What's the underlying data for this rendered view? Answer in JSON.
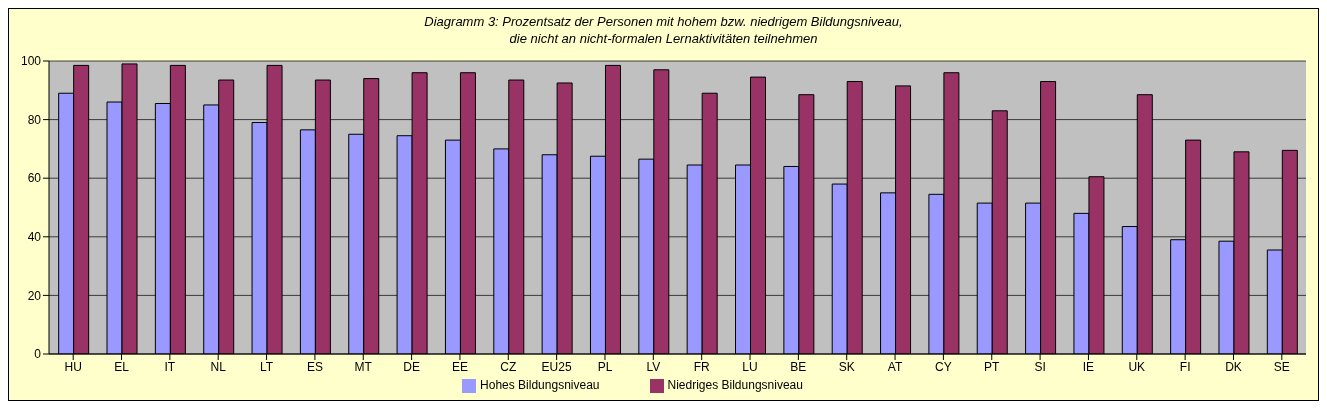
{
  "chart_data": {
    "type": "bar",
    "title": "Diagramm 3: Prozentsatz der Personen mit hohem bzw. niedrigem Bildungsniveau,\ndie nicht an nicht-formalen Lernaktivitäten teilnehmen",
    "categories": [
      "HU",
      "EL",
      "IT",
      "NL",
      "LT",
      "ES",
      "MT",
      "DE",
      "EE",
      "CZ",
      "EU25",
      "PL",
      "LV",
      "FR",
      "LU",
      "BE",
      "SK",
      "AT",
      "CY",
      "PT",
      "SI",
      "IE",
      "UK",
      "FI",
      "DK",
      "SE"
    ],
    "series": [
      {
        "name": "Hohes Bildungsniveau",
        "color": "#9999ff",
        "values": [
          89,
          86,
          85.5,
          85,
          79,
          76.5,
          75,
          74.5,
          73,
          70,
          68,
          67.5,
          66.5,
          64.5,
          64.5,
          64,
          58,
          55,
          54.5,
          51.5,
          51.5,
          48,
          43.5,
          39,
          38.5,
          35.5
        ]
      },
      {
        "name": "Niedriges Bildungsniveau",
        "color": "#993366",
        "values": [
          98.5,
          99,
          98.5,
          93.5,
          98.5,
          93.5,
          94,
          96,
          96,
          93.5,
          92.5,
          98.5,
          97,
          89,
          94.5,
          88.5,
          93,
          91.5,
          96,
          83,
          93,
          60.5,
          88.5,
          73,
          69,
          69.5
        ]
      }
    ],
    "ylim": [
      0,
      100
    ],
    "yticks": [
      0,
      20,
      40,
      60,
      80,
      100
    ],
    "grid": "y",
    "legend": "bottom"
  }
}
